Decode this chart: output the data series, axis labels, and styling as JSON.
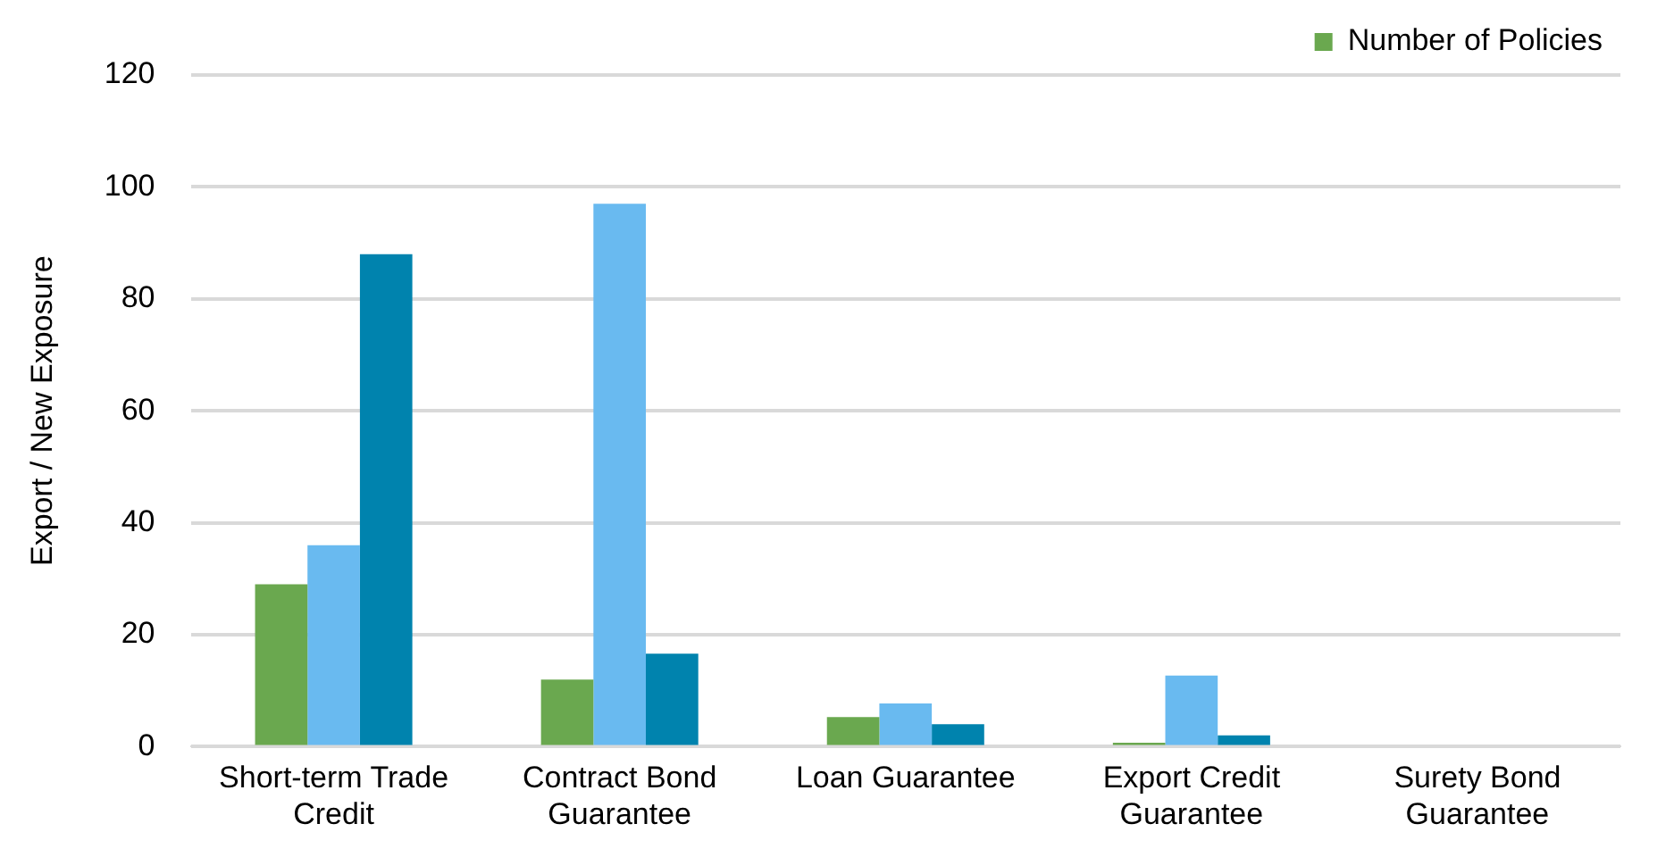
{
  "chart_data": {
    "type": "bar",
    "ylabel": "Export / New Exposure",
    "categories": [
      "Short-term Trade Credit",
      "Contract Bond Guarantee",
      "Loan Guarantee",
      "Export Credit Guarantee",
      "Surety Bond Guarantee"
    ],
    "series": [
      {
        "name": "Number of Policies",
        "color": "#6aa84f",
        "values": [
          29,
          12,
          5.3,
          0.7,
          0
        ]
      },
      {
        "color": "#69baf0",
        "values": [
          36,
          97,
          7.7,
          12.7,
          0
        ]
      },
      {
        "color": "#0083ae",
        "values": [
          88,
          16.6,
          4,
          2,
          0
        ]
      }
    ],
    "ylim": [
      0,
      120
    ],
    "yticks": [
      0,
      20,
      40,
      60,
      80,
      100,
      120
    ],
    "grid": "y",
    "legend": "top right"
  }
}
